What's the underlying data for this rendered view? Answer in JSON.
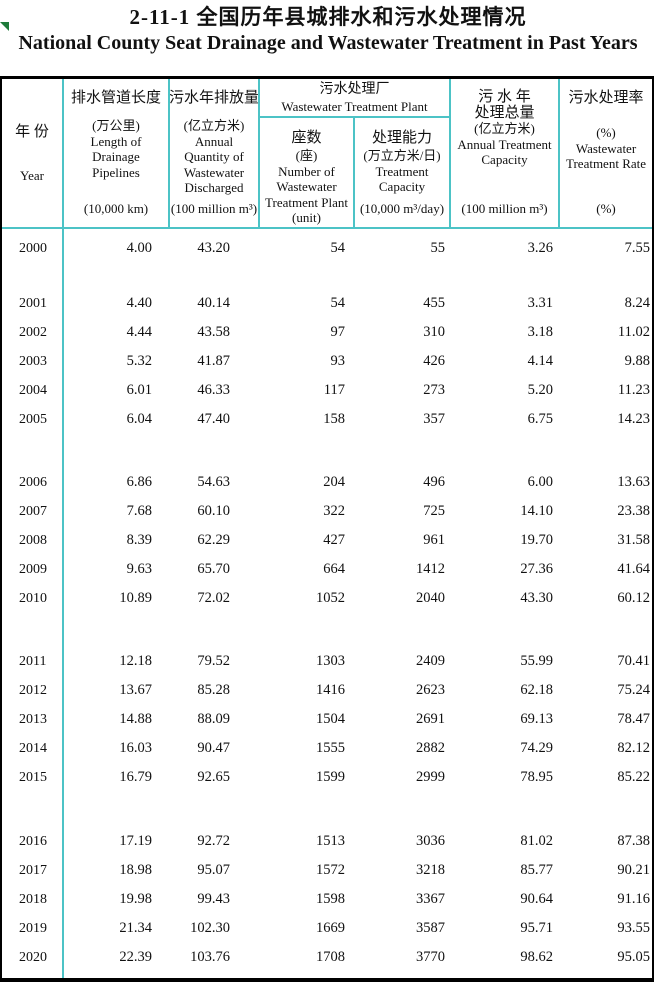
{
  "title": {
    "zh": "2-11-1  全国历年县城排水和污水处理情况",
    "en": "National County Seat Drainage and Wastewater Treatment in Past Years"
  },
  "colors": {
    "grid_line": "#4cc3c6",
    "border": "#000000",
    "marker": "#1e7b3a",
    "text": "#111111"
  },
  "header": {
    "year": {
      "zh": "年  份",
      "en": "Year"
    },
    "group": {
      "zh": "污水处理厂",
      "en": "Wastewater Treatment  Plant"
    },
    "cols": [
      {
        "zh": "排水管道长度",
        "mid": [
          "(万公里)",
          "Length of",
          "Drainage",
          "Pipelines"
        ],
        "unit": "(10,000 km)"
      },
      {
        "zh": "污水年排放量",
        "mid": [
          "(亿立方米)",
          "Annual",
          "Quantity of",
          "Wastewater",
          "Discharged"
        ],
        "unit": "(100 million m³)"
      },
      {
        "zh": "座数",
        "mid": [
          "(座)",
          "Number of",
          "Wastewater",
          "Treatment Plant"
        ],
        "unit": "(unit)"
      },
      {
        "zh": "处理能力",
        "mid": [
          "(万立方米/日)",
          "Treatment",
          "Capacity"
        ],
        "unit": "(10,000 m³/day)"
      },
      {
        "zh_lines": [
          "污 水 年",
          "处理总量"
        ],
        "mid": [
          "(亿立方米)",
          "Annual Treatment",
          "Capacity"
        ],
        "unit": "(100 million m³)"
      },
      {
        "zh": "污水处理率",
        "mid": [
          "(%)",
          "Wastewater",
          "Treatment Rate"
        ],
        "unit": "(%)"
      }
    ]
  },
  "table": {
    "groups": [
      [
        {
          "year": "2000",
          "values": [
            "4.00",
            "43.20",
            "54",
            "55",
            "3.26",
            "7.55"
          ]
        }
      ],
      [
        {
          "year": "2001",
          "values": [
            "4.40",
            "40.14",
            "54",
            "455",
            "3.31",
            "8.24"
          ]
        },
        {
          "year": "2002",
          "values": [
            "4.44",
            "43.58",
            "97",
            "310",
            "3.18",
            "11.02"
          ]
        },
        {
          "year": "2003",
          "values": [
            "5.32",
            "41.87",
            "93",
            "426",
            "4.14",
            "9.88"
          ]
        },
        {
          "year": "2004",
          "values": [
            "6.01",
            "46.33",
            "117",
            "273",
            "5.20",
            "11.23"
          ]
        },
        {
          "year": "2005",
          "values": [
            "6.04",
            "47.40",
            "158",
            "357",
            "6.75",
            "14.23"
          ]
        }
      ],
      [
        {
          "year": "2006",
          "values": [
            "6.86",
            "54.63",
            "204",
            "496",
            "6.00",
            "13.63"
          ]
        },
        {
          "year": "2007",
          "values": [
            "7.68",
            "60.10",
            "322",
            "725",
            "14.10",
            "23.38"
          ]
        },
        {
          "year": "2008",
          "values": [
            "8.39",
            "62.29",
            "427",
            "961",
            "19.70",
            "31.58"
          ]
        },
        {
          "year": "2009",
          "values": [
            "9.63",
            "65.70",
            "664",
            "1412",
            "27.36",
            "41.64"
          ]
        },
        {
          "year": "2010",
          "values": [
            "10.89",
            "72.02",
            "1052",
            "2040",
            "43.30",
            "60.12"
          ]
        }
      ],
      [
        {
          "year": "2011",
          "values": [
            "12.18",
            "79.52",
            "1303",
            "2409",
            "55.99",
            "70.41"
          ]
        },
        {
          "year": "2012",
          "values": [
            "13.67",
            "85.28",
            "1416",
            "2623",
            "62.18",
            "75.24"
          ]
        },
        {
          "year": "2013",
          "values": [
            "14.88",
            "88.09",
            "1504",
            "2691",
            "69.13",
            "78.47"
          ]
        },
        {
          "year": "2014",
          "values": [
            "16.03",
            "90.47",
            "1555",
            "2882",
            "74.29",
            "82.12"
          ]
        },
        {
          "year": "2015",
          "values": [
            "16.79",
            "92.65",
            "1599",
            "2999",
            "78.95",
            "85.22"
          ]
        }
      ],
      [
        {
          "year": "2016",
          "values": [
            "17.19",
            "92.72",
            "1513",
            "3036",
            "81.02",
            "87.38"
          ]
        },
        {
          "year": "2017",
          "values": [
            "18.98",
            "95.07",
            "1572",
            "3218",
            "85.77",
            "90.21"
          ]
        },
        {
          "year": "2018",
          "values": [
            "19.98",
            "99.43",
            "1598",
            "3367",
            "90.64",
            "91.16"
          ]
        },
        {
          "year": "2019",
          "values": [
            "21.34",
            "102.30",
            "1669",
            "3587",
            "95.71",
            "93.55"
          ]
        },
        {
          "year": "2020",
          "values": [
            "22.39",
            "103.76",
            "1708",
            "3770",
            "98.62",
            "95.05"
          ]
        }
      ]
    ]
  }
}
